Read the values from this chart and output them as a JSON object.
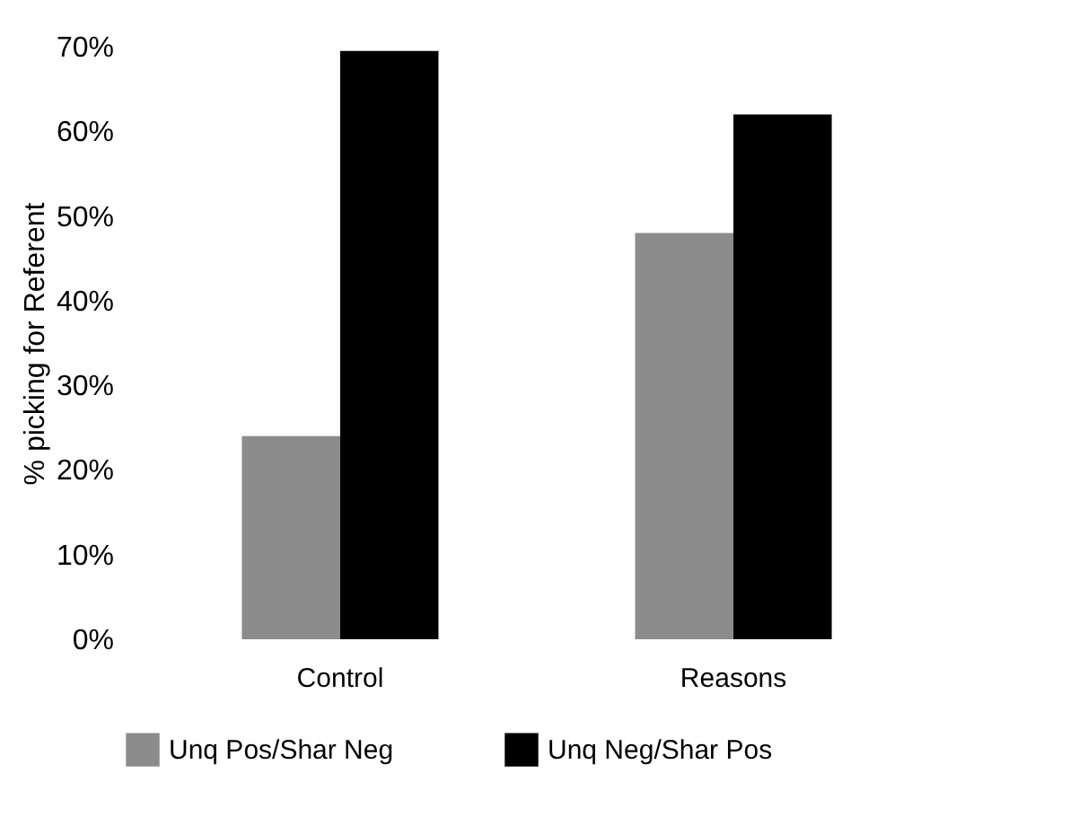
{
  "chart_data": {
    "type": "bar",
    "ylabel": "% picking for Referent",
    "categories": [
      "Control",
      "Reasons"
    ],
    "series": [
      {
        "name": "Unq Pos/Shar Neg",
        "color": "#8c8c8c",
        "values": [
          24,
          48
        ]
      },
      {
        "name": "Unq Neg/Shar Pos",
        "color": "#000000",
        "values": [
          69.5,
          62
        ]
      }
    ],
    "ylim": [
      0,
      70
    ],
    "yticks": [
      {
        "value": 0,
        "label": "0%"
      },
      {
        "value": 10,
        "label": "10%"
      },
      {
        "value": 20,
        "label": "20%"
      },
      {
        "value": 30,
        "label": "30%"
      },
      {
        "value": 40,
        "label": "40%"
      },
      {
        "value": 50,
        "label": "50%"
      },
      {
        "value": 60,
        "label": "60%"
      },
      {
        "value": 70,
        "label": "70%"
      }
    ],
    "legend": "bottom",
    "grid": false
  }
}
